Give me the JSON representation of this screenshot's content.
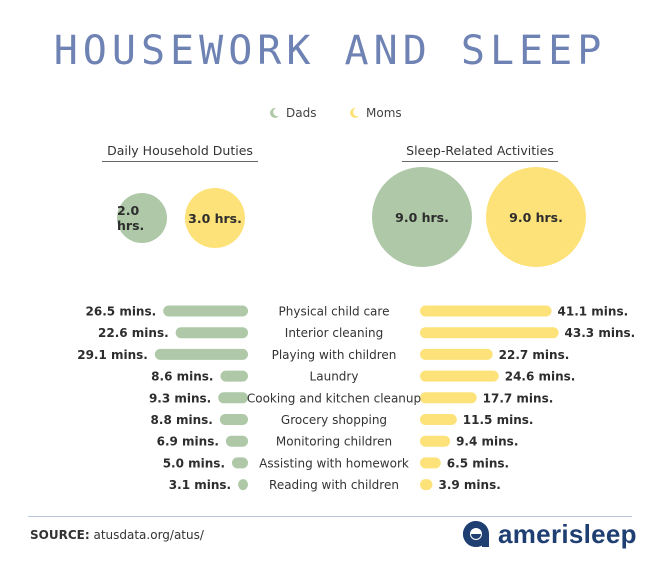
{
  "title": "HOUSEWORK AND SLEEP",
  "legend": {
    "dads": "Dads",
    "moms": "Moms"
  },
  "colors": {
    "dads": "#aec8a8",
    "moms": "#fde27a",
    "title": "#6f82b4",
    "brand": "#1f3f73"
  },
  "sections": {
    "household": {
      "title": "Daily Household Duties",
      "dads_label": "2.0 hrs.",
      "moms_label": "3.0 hrs."
    },
    "sleep": {
      "title": "Sleep-Related Activities",
      "dads_label": "9.0 hrs.",
      "moms_label": "9.0 hrs."
    }
  },
  "footer": {
    "source_label": "SOURCE:",
    "source_text": "atusdata.org/atus/",
    "brand": "amerisleep"
  },
  "chart_data": {
    "type": "bar",
    "bubbles": {
      "Daily Household Duties": {
        "Dads": 2.0,
        "Moms": 3.0,
        "unit": "hrs."
      },
      "Sleep-Related Activities": {
        "Dads": 9.0,
        "Moms": 9.0,
        "unit": "hrs."
      }
    },
    "categories": [
      "Physical child care",
      "Interior cleaning",
      "Playing with children",
      "Laundry",
      "Cooking and kitchen cleanup",
      "Grocery shopping",
      "Monitoring children",
      "Assisting with homework",
      "Reading with children"
    ],
    "series": [
      {
        "name": "Dads",
        "values": [
          26.5,
          22.6,
          29.1,
          8.6,
          9.3,
          8.8,
          6.9,
          5.0,
          3.1
        ],
        "labels": [
          "26.5 mins.",
          "22.6 mins.",
          "29.1 mins.",
          "8.6 mins.",
          "9.3 mins.",
          "8.8 mins.",
          "6.9 mins.",
          "5.0 mins.",
          "3.1 mins."
        ]
      },
      {
        "name": "Moms",
        "values": [
          41.1,
          43.3,
          22.7,
          24.6,
          17.7,
          11.5,
          9.4,
          6.5,
          3.9
        ],
        "labels": [
          "41.1 mins.",
          "43.3 mins.",
          "22.7 mins.",
          "24.6 mins.",
          "17.7 mins.",
          "11.5 mins.",
          "9.4 mins.",
          "6.5 mins.",
          "3.9 mins."
        ]
      }
    ]
  }
}
